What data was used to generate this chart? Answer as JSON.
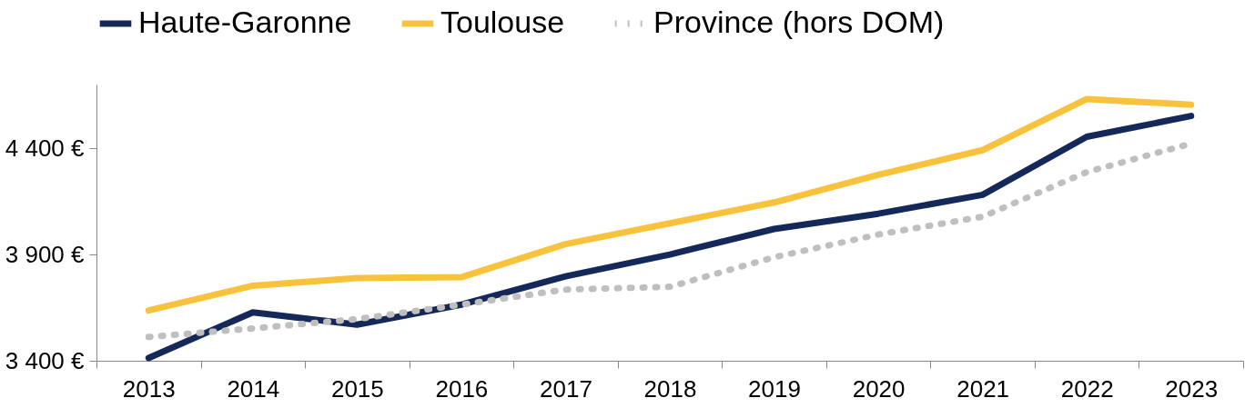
{
  "chart_data": {
    "type": "line",
    "categories": [
      "2013",
      "2014",
      "2015",
      "2016",
      "2017",
      "2018",
      "2019",
      "2020",
      "2021",
      "2022",
      "2023"
    ],
    "series": [
      {
        "name": "Haute-Garonne",
        "color": "#14285a",
        "line_style": "solid",
        "values": [
          3413,
          3628,
          3570,
          3664,
          3797,
          3900,
          4020,
          4092,
          4181,
          4454,
          4552
        ]
      },
      {
        "name": "Toulouse",
        "color": "#f9c23c",
        "line_style": "solid",
        "values": [
          3637,
          3753,
          3789,
          3793,
          3949,
          4047,
          4145,
          4275,
          4391,
          4632,
          4605
        ]
      },
      {
        "name": "Province (hors DOM)",
        "color": "#bfbfbf",
        "line_style": "dotted",
        "values": [
          3512,
          3552,
          3596,
          3664,
          3735,
          3748,
          3887,
          3994,
          4078,
          4288,
          4422
        ]
      }
    ],
    "ylim": [
      3400,
      4700
    ],
    "yticks": [
      {
        "value": 3400,
        "label": "3 400 €"
      },
      {
        "value": 3900,
        "label": "3 900 €"
      },
      {
        "value": 4400,
        "label": "4 400 €"
      }
    ],
    "grid": false,
    "legend": "top",
    "marker": "none"
  }
}
